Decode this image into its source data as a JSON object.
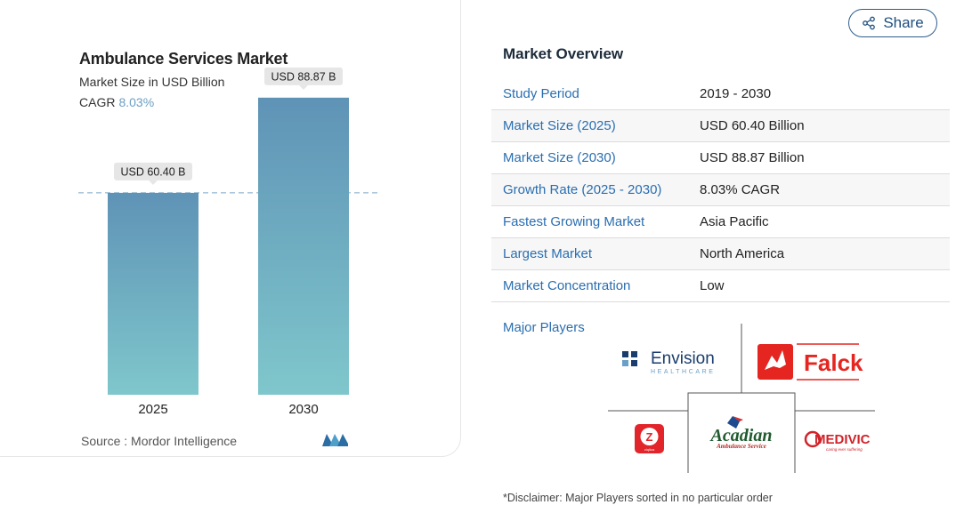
{
  "chart": {
    "title": "Ambulance Services Market",
    "subtitle": "Market Size in USD Billion",
    "cagr_label": "CAGR",
    "cagr_value": "8.03%",
    "source": "Source :  Mordor Intelligence"
  },
  "chart_data": {
    "type": "bar",
    "categories": [
      "2025",
      "2030"
    ],
    "values": [
      60.4,
      88.87
    ],
    "data_labels": [
      "USD 60.40 B",
      "USD 88.87 B"
    ],
    "title": "Ambulance Services Market",
    "subtitle": "Market Size in USD Billion",
    "ylim": [
      0,
      100
    ],
    "reference_line": 60.4,
    "grid": false,
    "colors": {
      "bar_top": "#5f93b6",
      "bar_bottom": "#7fc7cc",
      "label_bg": "#e6e6e6",
      "ref_line": "#7aa6c6"
    }
  },
  "share": {
    "label": "Share",
    "icon": "share-icon"
  },
  "overview": {
    "title": "Market Overview",
    "rows": [
      {
        "label": "Study Period",
        "value": "2019 - 2030"
      },
      {
        "label": "Market Size (2025)",
        "value": "USD 60.40 Billion"
      },
      {
        "label": "Market Size (2030)",
        "value": "USD 88.87 Billion"
      },
      {
        "label": "Growth Rate (2025 - 2030)",
        "value": "8.03% CAGR"
      },
      {
        "label": "Fastest Growing Market",
        "value": "Asia Pacific"
      },
      {
        "label": "Largest Market",
        "value": "North America"
      },
      {
        "label": "Market Concentration",
        "value": "Low"
      }
    ],
    "players_label": "Major Players",
    "players": [
      {
        "name": "Envision Healthcare",
        "logo_text": "Envision",
        "logo_sub": "HEALTHCARE"
      },
      {
        "name": "Falck",
        "logo_text": "Falck"
      },
      {
        "name": "Ziqitza",
        "logo_text": "Z",
        "logo_sub": "ziqitza"
      },
      {
        "name": "Acadian Ambulance Service",
        "logo_text": "Acadian",
        "logo_sub": "Ambulance Service"
      },
      {
        "name": "Medivic",
        "logo_text": "MEDIVIC",
        "logo_sub": "caring ever suffering"
      }
    ],
    "disclaimer": "*Disclaimer: Major Players sorted in no particular order"
  }
}
